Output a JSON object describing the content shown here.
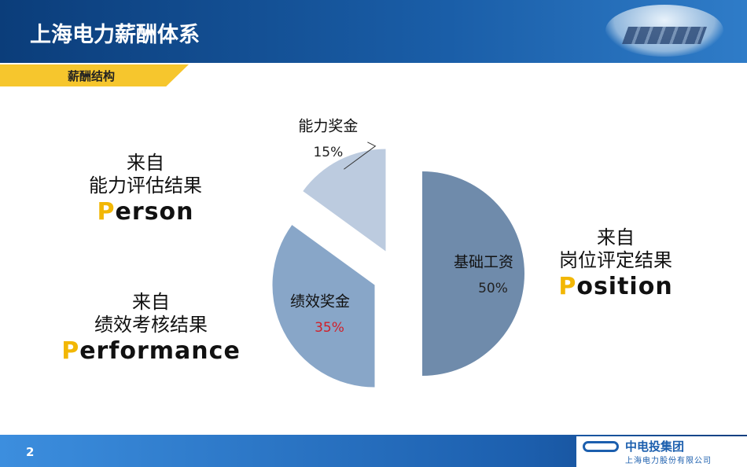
{
  "header": {
    "title": "上海电力薪酬体系",
    "section": "薪酬结构"
  },
  "chart_data": {
    "type": "pie",
    "categories": [
      "基础工资",
      "绩效奖金",
      "能力奖金"
    ],
    "values": [
      50,
      35,
      15
    ],
    "value_labels": [
      "50%",
      "35%",
      "15%"
    ],
    "colors": [
      "#6f8bab",
      "#88a6c8",
      "#bccbdf"
    ],
    "value_label_colors": [
      "#222222",
      "#d0202a",
      "#222222"
    ]
  },
  "annotations": [
    {
      "lines": [
        "来自",
        "能力评估结果"
      ],
      "keyword": "Person"
    },
    {
      "lines": [
        "来自",
        "绩效考核结果"
      ],
      "keyword": "Performance"
    },
    {
      "lines": [
        "来自",
        "岗位评定结果"
      ],
      "keyword": "Position"
    }
  ],
  "footer": {
    "page": 2,
    "logo": "中电投集团",
    "company": "上海电力股份有限公司"
  }
}
